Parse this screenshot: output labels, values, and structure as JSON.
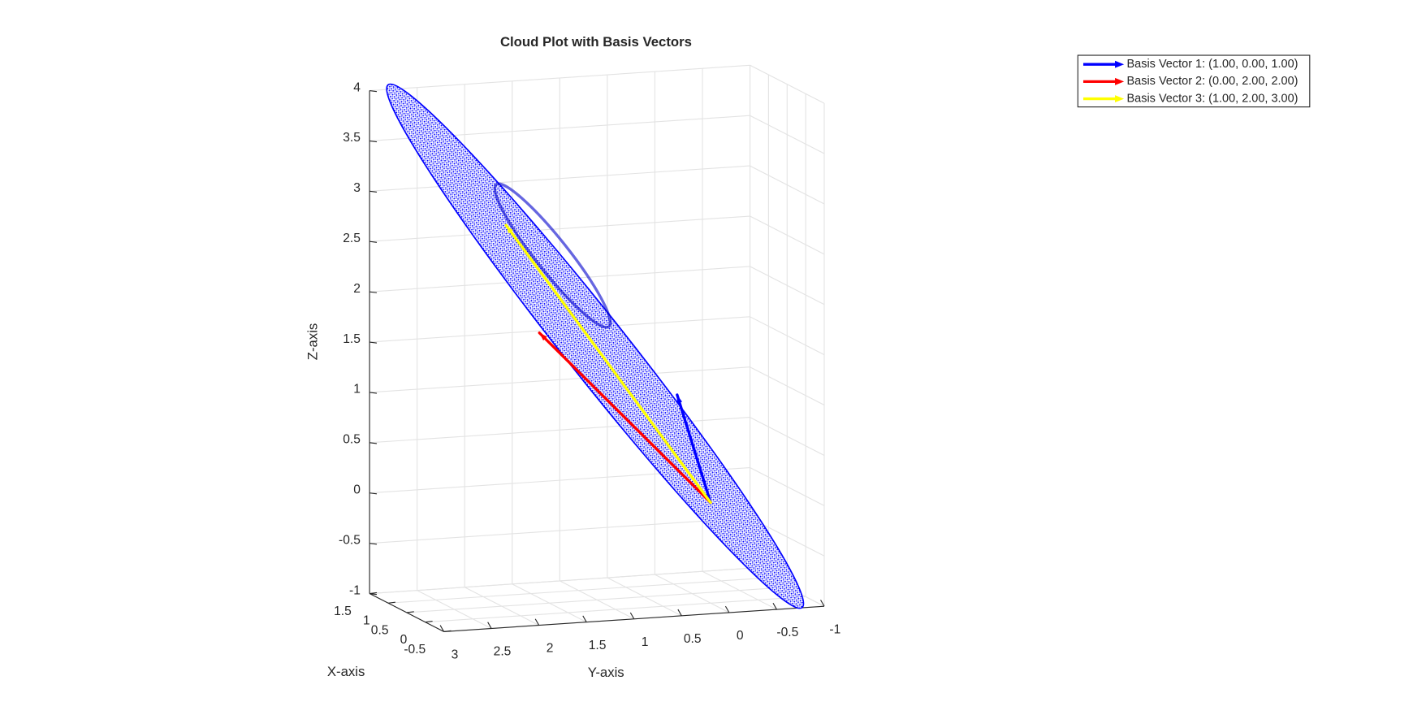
{
  "chart_data": {
    "type": "quiver3d",
    "title": "Cloud Plot with Basis Vectors",
    "xlabel": "X-axis",
    "ylabel": "Y-axis",
    "zlabel": "Z-axis",
    "xlim": [
      -0.5,
      1.5
    ],
    "ylim": [
      -1,
      3
    ],
    "zlim": [
      -1,
      4
    ],
    "xticks": [
      -0.5,
      0,
      0.5,
      1,
      1.5
    ],
    "yticks": [
      -1,
      -0.5,
      0,
      0.5,
      1,
      1.5,
      2,
      2.5,
      3
    ],
    "zticks": [
      -1,
      -0.5,
      0,
      0.5,
      1,
      1.5,
      2,
      2.5,
      3,
      3.5,
      4
    ],
    "grid": true,
    "legend_location": "northeastoutside",
    "series": [
      {
        "name": "Basis Vector 1: (1.00, 0.00, 1.00)",
        "color": "#0000ff",
        "origin": [
          0,
          0,
          0
        ],
        "vector": [
          1,
          0,
          1
        ]
      },
      {
        "name": "Basis Vector 2: (0.00, 2.00, 2.00)",
        "color": "#ff0000",
        "origin": [
          0,
          0,
          0
        ],
        "vector": [
          0,
          2,
          2
        ]
      },
      {
        "name": "Basis Vector 3: (1.00, 2.00, 3.00)",
        "color": "#ffff00",
        "origin": [
          0,
          0,
          0
        ],
        "vector": [
          1,
          2,
          3
        ]
      }
    ]
  }
}
